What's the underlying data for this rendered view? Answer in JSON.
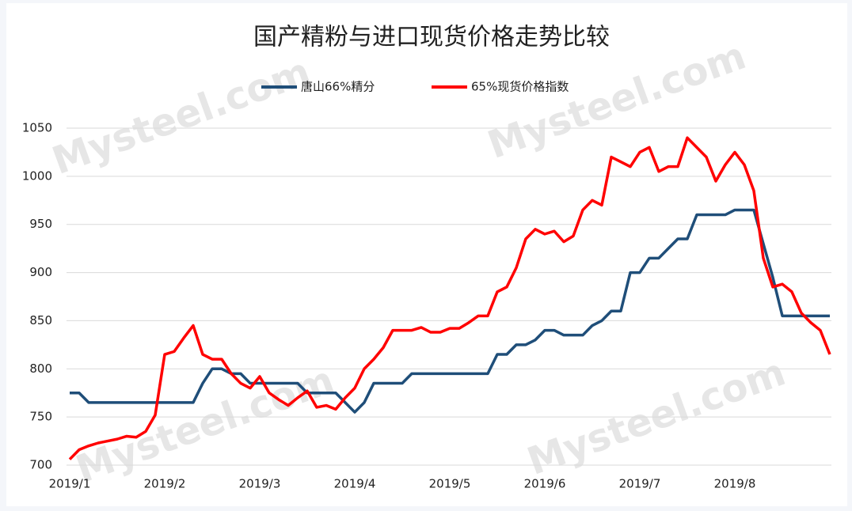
{
  "chart_data": {
    "type": "line",
    "title": "国产精粉与进口现货价格走势比较",
    "watermark": "Mysteel.com",
    "categories": [
      "2019/1",
      null,
      null,
      null,
      null,
      null,
      null,
      null,
      null,
      null,
      "2019/2",
      null,
      null,
      null,
      null,
      null,
      null,
      null,
      null,
      null,
      "2019/3",
      null,
      null,
      null,
      null,
      null,
      null,
      null,
      null,
      null,
      "2019/4",
      null,
      null,
      null,
      null,
      null,
      null,
      null,
      null,
      null,
      "2019/5",
      null,
      null,
      null,
      null,
      null,
      null,
      null,
      null,
      null,
      "2019/6",
      null,
      null,
      null,
      null,
      null,
      null,
      null,
      null,
      null,
      "2019/7",
      null,
      null,
      null,
      null,
      null,
      null,
      null,
      null,
      null,
      "2019/8",
      null,
      null,
      null,
      null,
      null,
      null,
      null,
      null,
      null,
      null
    ],
    "series": [
      {
        "name": "唐山66%精分",
        "color": "#1f4e79",
        "values": [
          775,
          775,
          765,
          765,
          765,
          765,
          765,
          765,
          765,
          765,
          765,
          765,
          765,
          765,
          785,
          800,
          800,
          795,
          795,
          785,
          785,
          785,
          785,
          785,
          785,
          775,
          775,
          775,
          775,
          765,
          755,
          765,
          785,
          785,
          785,
          785,
          795,
          795,
          795,
          795,
          795,
          795,
          795,
          795,
          795,
          815,
          815,
          825,
          825,
          830,
          840,
          840,
          835,
          835,
          835,
          845,
          850,
          860,
          860,
          900,
          900,
          915,
          915,
          925,
          935,
          935,
          960,
          960,
          960,
          960,
          965,
          965,
          965,
          930,
          895,
          855,
          855,
          855,
          855,
          855,
          855
        ]
      },
      {
        "name": "65%现货价格指数",
        "color": "#ff0000",
        "values": [
          706,
          716,
          720,
          723,
          725,
          727,
          730,
          729,
          735,
          752,
          815,
          818,
          832,
          845,
          815,
          810,
          810,
          795,
          785,
          780,
          792,
          775,
          768,
          762,
          770,
          777,
          760,
          762,
          758,
          770,
          780,
          800,
          810,
          822,
          840,
          840,
          840,
          843,
          838,
          838,
          842,
          842,
          848,
          855,
          855,
          880,
          885,
          905,
          935,
          945,
          940,
          943,
          932,
          938,
          965,
          975,
          970,
          1020,
          1015,
          1010,
          1025,
          1030,
          1005,
          1010,
          1010,
          1040,
          1030,
          1020,
          995,
          1012,
          1025,
          1012,
          985,
          915,
          885,
          888,
          880,
          858,
          848,
          840,
          815
        ]
      }
    ],
    "ylim": [
      700,
      1050
    ],
    "yticks": [
      700,
      750,
      800,
      850,
      900,
      950,
      1000,
      1050
    ],
    "grid": true,
    "legend": "top"
  }
}
